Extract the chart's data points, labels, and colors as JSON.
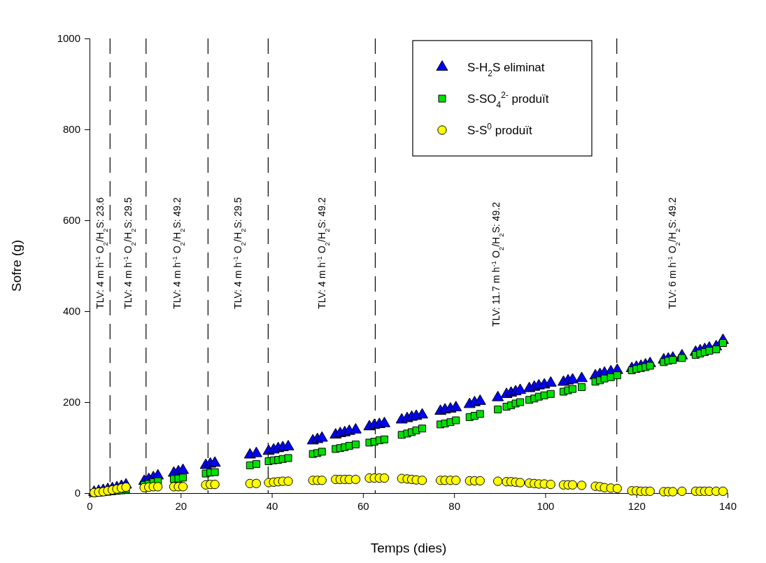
{
  "chart_data": {
    "type": "scatter",
    "xlabel": "Temps (dies)",
    "ylabel": "Sofre (g)",
    "xlim": [
      0,
      140
    ],
    "xticks": [
      0,
      20,
      40,
      60,
      80,
      100,
      120,
      140
    ],
    "ylim": [
      0,
      1000
    ],
    "yticks": [
      0,
      200,
      400,
      600,
      800,
      1000
    ],
    "grid": false,
    "legend": "top right",
    "x": [
      1,
      2,
      3,
      4,
      5,
      6,
      7,
      8,
      12,
      13,
      14,
      15,
      18.5,
      19.5,
      20.5,
      25.5,
      26.5,
      27.5,
      35.2,
      36.6,
      39.3,
      40.4,
      41.4,
      42.4,
      43.6,
      49,
      50,
      51,
      54,
      55,
      56,
      57,
      58.4,
      61.4,
      62.5,
      63.6,
      64.7,
      68.5,
      69.7,
      70.7,
      71.7,
      73,
      77,
      78,
      79.2,
      80.4,
      83.4,
      84.5,
      85.7,
      89.6,
      91.5,
      92.5,
      93.5,
      94.5,
      96.5,
      97.6,
      98.6,
      99.8,
      101.2,
      104,
      105,
      106,
      108,
      111,
      112,
      113,
      114.4,
      115.8,
      119,
      120,
      121,
      122,
      123,
      126,
      127,
      128,
      130,
      133,
      134,
      135,
      136,
      137.5,
      139
    ],
    "series": [
      {
        "name": "S-H$_{2}$S eliminat",
        "color": "#0000ff",
        "marker": "triangle",
        "values": [
          2,
          4,
          6,
          8,
          10,
          12,
          15,
          18,
          26,
          30,
          34,
          38,
          44,
          47,
          50,
          61,
          64,
          66,
          84,
          87,
          92,
          95,
          98,
          100,
          102,
          115,
          118,
          121,
          128,
          131,
          133,
          136,
          139,
          146,
          149,
          151,
          153,
          161,
          164,
          167,
          169,
          172,
          180,
          183,
          185,
          188,
          195,
          199,
          202,
          210,
          217,
          220,
          223,
          226,
          230,
          233,
          236,
          238,
          242,
          244,
          247,
          249,
          252,
          258,
          261,
          264,
          267,
          270,
          274,
          277,
          279,
          282,
          285,
          293,
          295,
          297,
          302,
          310,
          313,
          316,
          319,
          322,
          336
        ]
      },
      {
        "name": "S-SO$_{4}$$^{2-}$ produït",
        "color": "#00e000",
        "marker": "square",
        "values": [
          0,
          1,
          2,
          3,
          4,
          5,
          6,
          8,
          18,
          20,
          24,
          26,
          31,
          32,
          34,
          43,
          45,
          46,
          61,
          64,
          70,
          72,
          73,
          75,
          77,
          86,
          88,
          91,
          97,
          99,
          101,
          104,
          107,
          111,
          113,
          116,
          118,
          128,
          131,
          134,
          138,
          142,
          151,
          153,
          156,
          160,
          167,
          170,
          174,
          184,
          190,
          193,
          197,
          200,
          205,
          208,
          212,
          215,
          218,
          223,
          226,
          229,
          233,
          245,
          248,
          252,
          255,
          259,
          270,
          273,
          275,
          277,
          280,
          288,
          291,
          293,
          297,
          304,
          307,
          310,
          313,
          316,
          330
        ]
      },
      {
        "name": "S-S$^{0}$ produït",
        "color": "#ffff00",
        "marker": "circle",
        "values": [
          1,
          2,
          3,
          5,
          7,
          9,
          11,
          13,
          12,
          13,
          14,
          14,
          14,
          14,
          14,
          18,
          19,
          19,
          21,
          21,
          23,
          24,
          25,
          26,
          26,
          28,
          28,
          28,
          30,
          30,
          30,
          30,
          30,
          33,
          33,
          33,
          33,
          32,
          31,
          30,
          29,
          28,
          28,
          28,
          28,
          28,
          27,
          27,
          27,
          26,
          25,
          25,
          24,
          23,
          22,
          21,
          20,
          20,
          19,
          18,
          18,
          18,
          17,
          15,
          14,
          12,
          11,
          10,
          5,
          5,
          4,
          4,
          4,
          3,
          3,
          3,
          4,
          4,
          4,
          4,
          4,
          4,
          4
        ]
      }
    ],
    "ref_lines": [
      {
        "axis": "x",
        "value": 4.5,
        "line_style": "dashed"
      },
      {
        "axis": "x",
        "value": 12.4,
        "line_style": "dashed"
      },
      {
        "axis": "x",
        "value": 26,
        "line_style": "dashed"
      },
      {
        "axis": "x",
        "value": 39.2,
        "line_style": "dashed"
      },
      {
        "axis": "x",
        "value": 62.7,
        "line_style": "dashed"
      },
      {
        "axis": "x",
        "value": 115.7,
        "line_style": "dashed"
      }
    ],
    "annotations": [
      "TLV: 4 m h$^{-1}$  O$_{2}$/H$_{2}$S: 23.6",
      "TLV: 4 m h$^{-1}$  O$_{2}$/H$_{2}$S: 29.5",
      "TLV: 4 m h$^{-1}$  O$_{2}$/H$_{2}$S: 49.2",
      "TLV: 4 m h$^{-1}$  O$_{2}$/H$_{2}$S: 29.5",
      "TLV: 4 m h$^{-1}$  O$_{2}$/H$_{2}$S: 49.2",
      "TLV: 11.7 m h$^{-1}$  O$_{2}$/H$_{2}$S: 49.2",
      "TLV: 6 m h$^{-1}$  O$_{2}$/H$_{2}$S: 49.2"
    ]
  }
}
